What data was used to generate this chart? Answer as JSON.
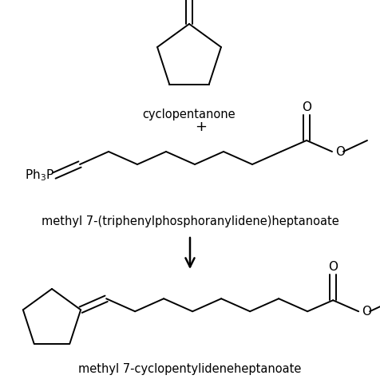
{
  "bg_color": "#ffffff",
  "text_color": "#000000",
  "figsize": [
    4.77,
    4.9
  ],
  "dpi": 100,
  "cyclopentanone_label": "cyclopentanone",
  "reagent_label": "methyl 7-(triphenylphosphoranylidene)heptanoate",
  "product_label": "methyl 7-cyclopentylideneheptanoate",
  "plus_sign": "+",
  "font_size_label": 10.5,
  "font_size_atom": 11,
  "line_width": 1.4
}
